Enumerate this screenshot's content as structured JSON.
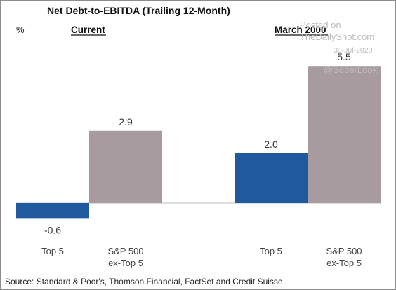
{
  "chart_data": {
    "type": "bar",
    "title": "Net Debt-to-EBITDA (Trailing 12-Month)",
    "unit_label": "%",
    "groups": [
      "Current",
      "March 2000"
    ],
    "categories": [
      "Top 5",
      "S&P 500 ex-Top 5",
      "Top 5",
      "S&P 500 ex-Top 5"
    ],
    "category_lines": [
      [
        "Top 5"
      ],
      [
        "S&P 500",
        "ex-Top 5"
      ],
      [
        "Top 5"
      ],
      [
        "S&P 500",
        "ex-Top 5"
      ]
    ],
    "values": [
      -0.6,
      2.9,
      2.0,
      5.5
    ],
    "value_labels": [
      "-0.6",
      "2.9",
      "2.0",
      "5.5"
    ],
    "bar_colors": [
      "#1f5a9e",
      "#a89b9f",
      "#1f5a9e",
      "#a89b9f"
    ],
    "ylim": [
      -0.6,
      5.5
    ],
    "grid": false,
    "legend": "none"
  },
  "source": "Source: Standard & Poor's, Thomson Financial, FactSet and Credit Suisse",
  "watermark": {
    "line1": "Posted on",
    "line2": "TheDailyShot.com",
    "date": "30-Jul-2020",
    "handle": "@SoberLook"
  },
  "colors": {
    "top5": "#1f5a9e",
    "ex_top5": "#a89b9f",
    "axis": "#bfbfbf"
  }
}
